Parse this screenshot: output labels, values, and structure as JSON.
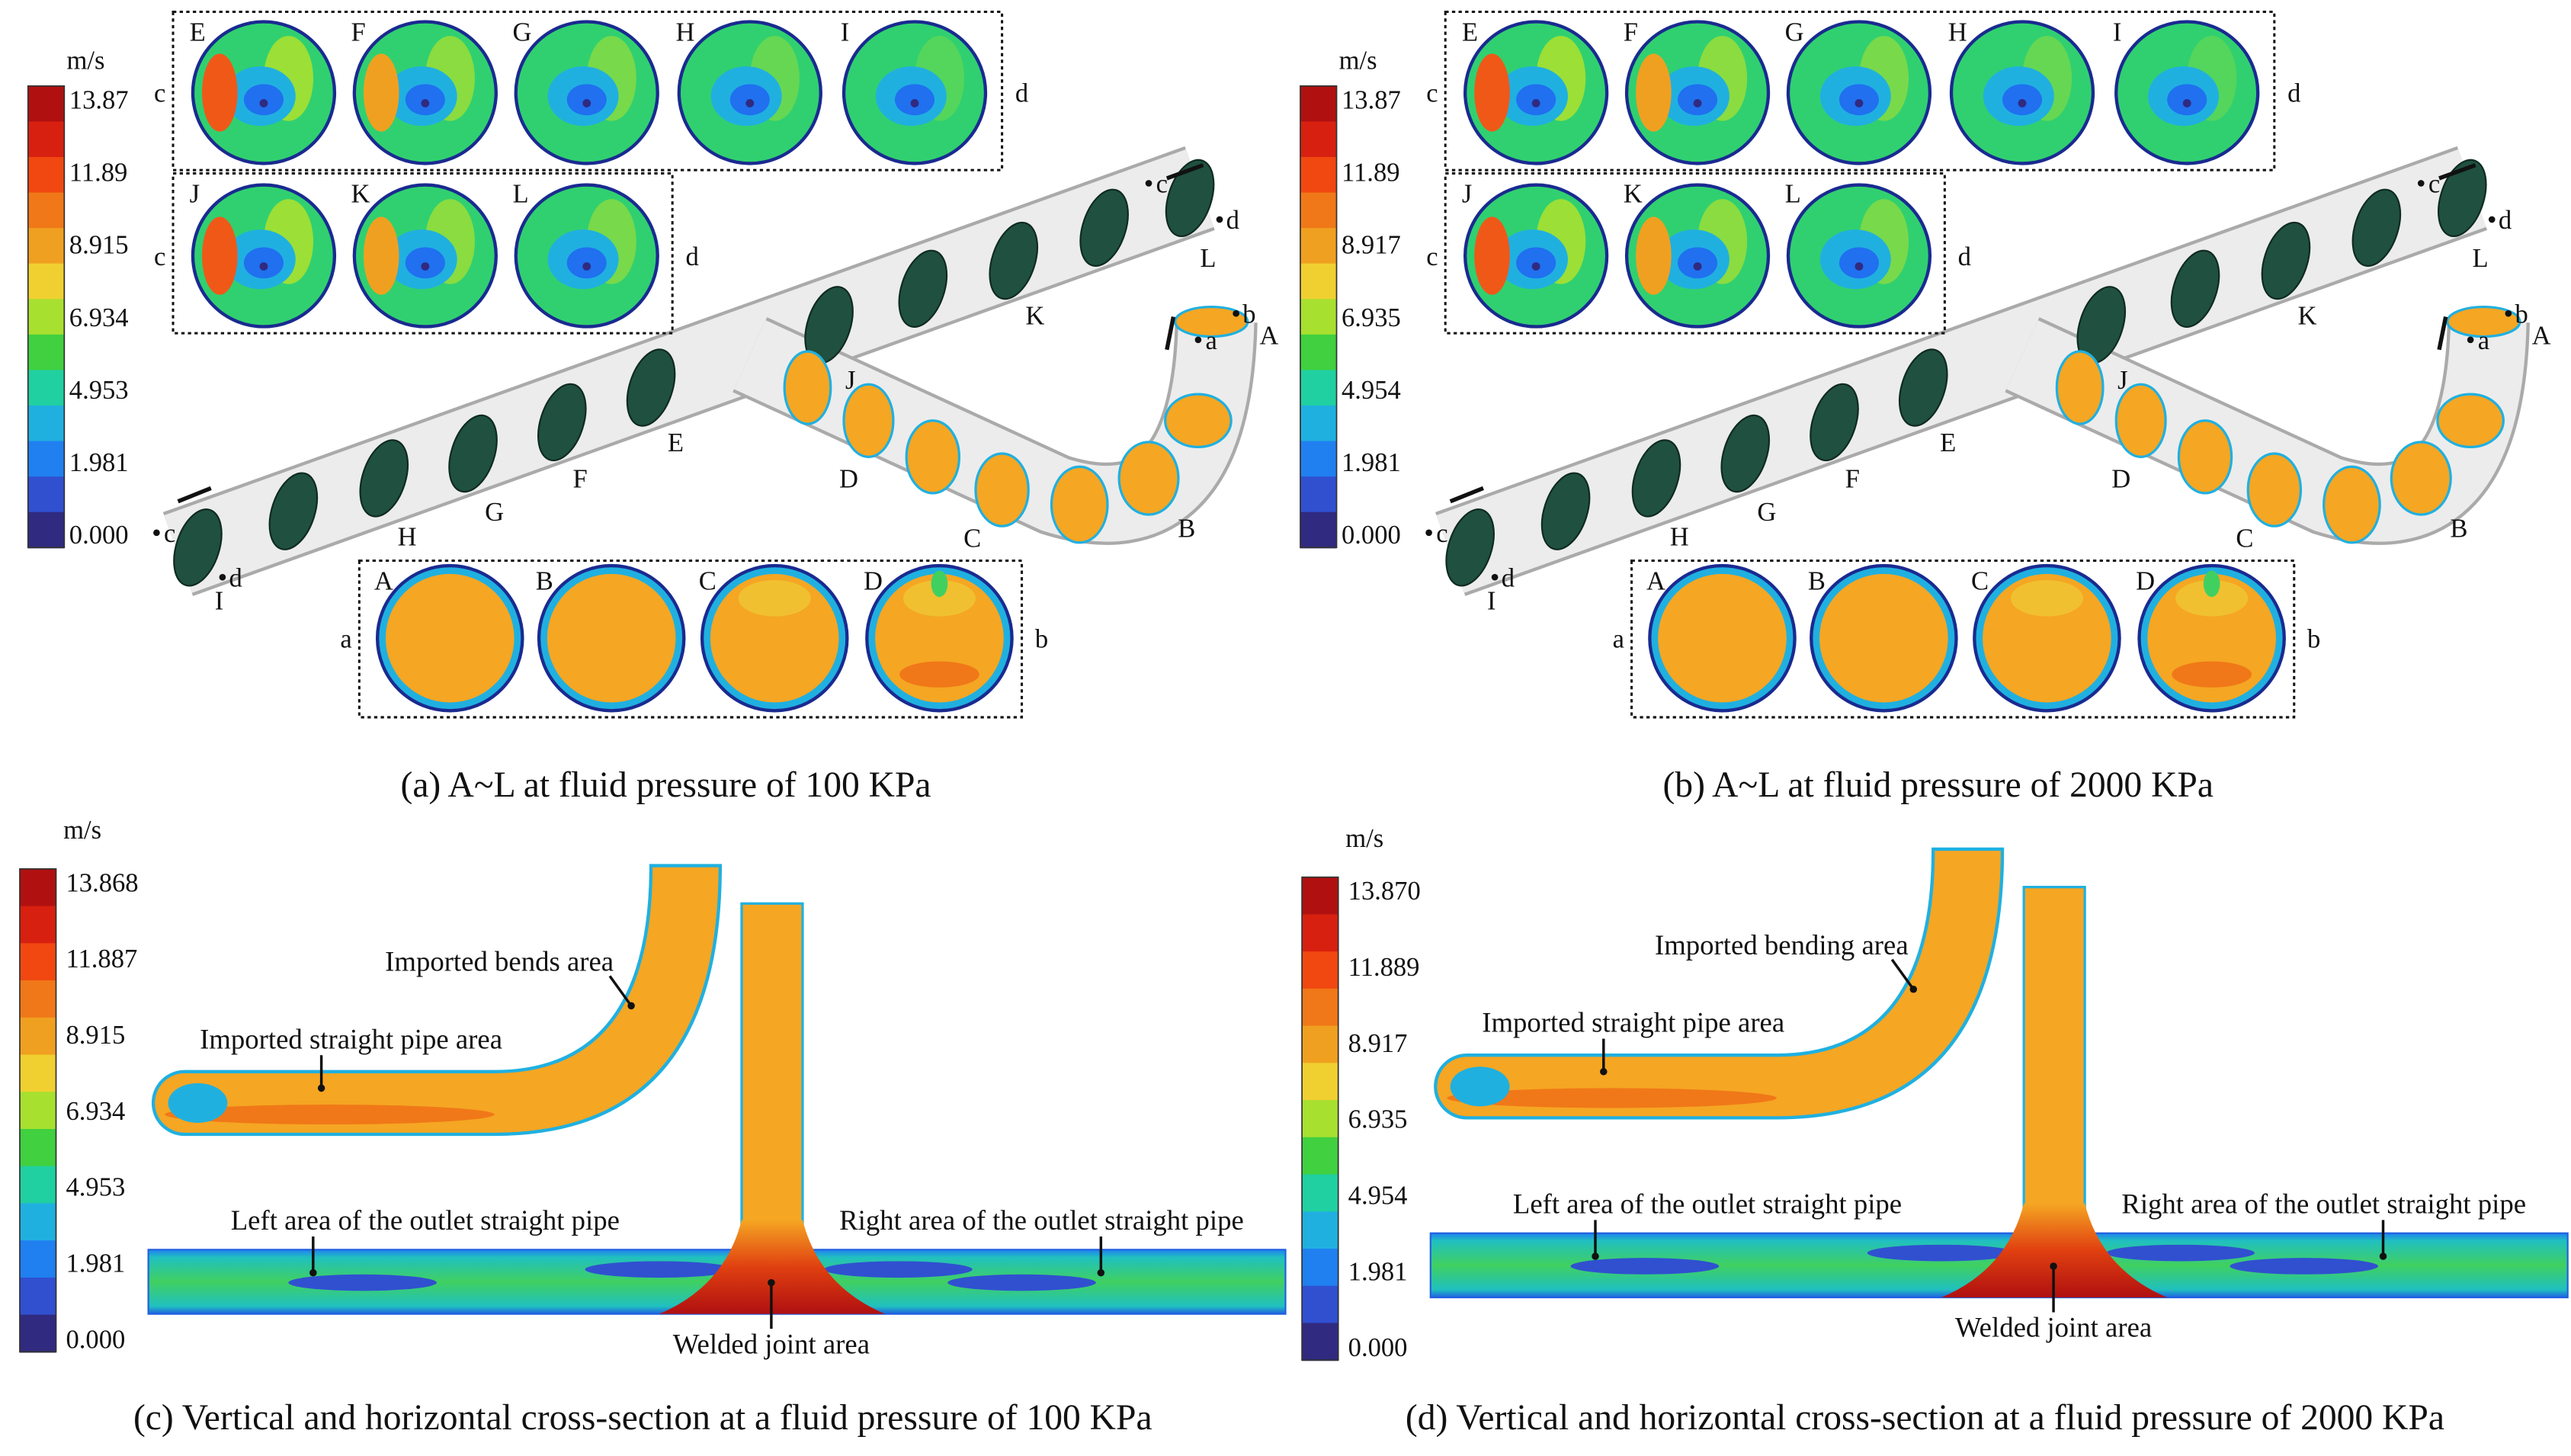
{
  "top": [
    {
      "caption": "(a) A~L at fluid pressure of 100 KPa",
      "unit": "m/s",
      "colorbar": [
        "13.87",
        "11.89",
        "8.915",
        "6.934",
        "4.953",
        "1.981",
        "0.000"
      ],
      "box_top": {
        "labels": [
          "E",
          "F",
          "G",
          "H",
          "I"
        ],
        "left": "c",
        "right": "d"
      },
      "box_mid": {
        "labels": [
          "J",
          "K",
          "L"
        ],
        "left": "c",
        "right": "d"
      },
      "box_bottom": {
        "labels": [
          "A",
          "B",
          "C",
          "D"
        ],
        "left": "a",
        "right": "b"
      },
      "pipe_labels": [
        "A",
        "B",
        "C",
        "D",
        "E",
        "F",
        "G",
        "H",
        "I",
        "J",
        "K",
        "L"
      ],
      "pipe_points": [
        "a",
        "b",
        "c",
        "d",
        "c",
        "d"
      ]
    },
    {
      "caption": "(b) A~L at fluid pressure of 2000 KPa",
      "unit": "m/s",
      "colorbar": [
        "13.87",
        "11.89",
        "8.917",
        "6.935",
        "4.954",
        "1.981",
        "0.000"
      ],
      "box_top": {
        "labels": [
          "E",
          "F",
          "G",
          "H",
          "I"
        ],
        "left": "c",
        "right": "d"
      },
      "box_mid": {
        "labels": [
          "J",
          "K",
          "L"
        ],
        "left": "c",
        "right": "d"
      },
      "box_bottom": {
        "labels": [
          "A",
          "B",
          "C",
          "D"
        ],
        "left": "a",
        "right": "b"
      },
      "pipe_labels": [
        "A",
        "B",
        "C",
        "D",
        "E",
        "F",
        "G",
        "H",
        "I",
        "J",
        "K",
        "L"
      ],
      "pipe_points": [
        "a",
        "b",
        "c",
        "d",
        "c",
        "d"
      ]
    }
  ],
  "bottom": [
    {
      "caption": "(c) Vertical and horizontal cross-section at a fluid pressure of 100 KPa",
      "unit": "m/s",
      "colorbar": [
        "13.868",
        "11.887",
        "8.915",
        "6.934",
        "4.953",
        "1.981",
        "0.000"
      ],
      "annotations": [
        "Imported bends area",
        "Imported straight pipe area",
        "Left area of the outlet straight pipe",
        "Right area of the outlet straight pipe",
        "Welded joint area"
      ]
    },
    {
      "caption": "(d) Vertical and horizontal cross-section at a fluid pressure of 2000 KPa",
      "unit": "m/s",
      "colorbar": [
        "13.870",
        "11.889",
        "8.917",
        "6.935",
        "4.954",
        "1.981",
        "0.000"
      ],
      "annotations": [
        "Imported bending area",
        "Imported straight pipe area",
        "Left area of the outlet straight pipe",
        "Right area of the outlet straight pipe",
        "Welded joint area"
      ]
    }
  ]
}
